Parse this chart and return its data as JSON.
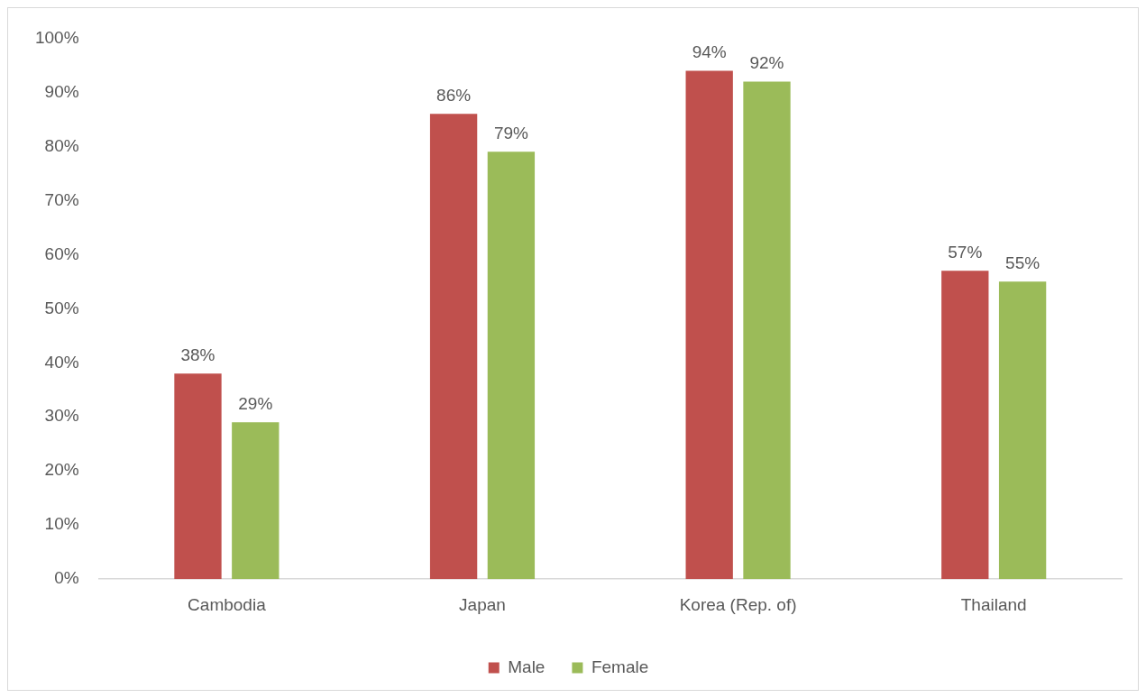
{
  "chart_data": {
    "type": "bar",
    "categories": [
      "Cambodia",
      "Japan",
      "Korea (Rep. of)",
      "Thailand"
    ],
    "series": [
      {
        "name": "Male",
        "color": "#c0504d",
        "values": [
          38,
          86,
          94,
          57
        ],
        "value_labels": [
          "38%",
          "86%",
          "94%",
          "57%"
        ]
      },
      {
        "name": "Female",
        "color": "#9bbb59",
        "values": [
          29,
          79,
          92,
          55
        ],
        "value_labels": [
          "29%",
          "79%",
          "92%",
          "55%"
        ]
      }
    ],
    "ylim": [
      0,
      100
    ],
    "yticks": [
      {
        "value": 0,
        "label": "0%"
      },
      {
        "value": 10,
        "label": "10%"
      },
      {
        "value": 20,
        "label": "20%"
      },
      {
        "value": 30,
        "label": "30%"
      },
      {
        "value": 40,
        "label": "40%"
      },
      {
        "value": 50,
        "label": "50%"
      },
      {
        "value": 60,
        "label": "60%"
      },
      {
        "value": 70,
        "label": "70%"
      },
      {
        "value": 80,
        "label": "80%"
      },
      {
        "value": 90,
        "label": "90%"
      },
      {
        "value": 100,
        "label": "100%"
      }
    ],
    "grid": false,
    "legend": "bottom"
  }
}
